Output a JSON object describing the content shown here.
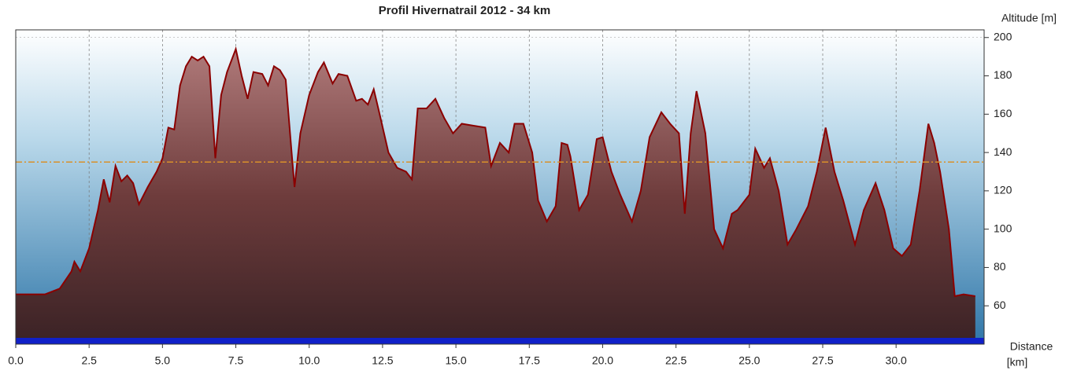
{
  "chart_data": {
    "type": "area",
    "title": "Profil Hivernatrail 2012 - 34 km",
    "y_label": "Altitude  [m]",
    "x_label": [
      "Distance",
      "[km]"
    ],
    "x": [
      0,
      0.5,
      1.0,
      1.5,
      1.9,
      2.0,
      2.2,
      2.5,
      2.8,
      3.0,
      3.2,
      3.4,
      3.6,
      3.8,
      4.0,
      4.2,
      4.5,
      4.8,
      5.0,
      5.2,
      5.4,
      5.6,
      5.8,
      6.0,
      6.2,
      6.4,
      6.6,
      6.8,
      7.0,
      7.2,
      7.5,
      7.7,
      7.9,
      8.1,
      8.4,
      8.6,
      8.8,
      9.0,
      9.2,
      9.4,
      9.5,
      9.7,
      10.0,
      10.3,
      10.5,
      10.8,
      11.0,
      11.3,
      11.6,
      11.8,
      12.0,
      12.2,
      12.4,
      12.7,
      13.0,
      13.3,
      13.5,
      13.7,
      14.0,
      14.3,
      14.6,
      14.9,
      15.2,
      15.6,
      16.0,
      16.2,
      16.5,
      16.8,
      17.0,
      17.3,
      17.6,
      17.8,
      18.1,
      18.4,
      18.6,
      18.8,
      18.9,
      19.2,
      19.5,
      19.8,
      20.0,
      20.3,
      20.6,
      21.0,
      21.3,
      21.6,
      22.0,
      22.3,
      22.6,
      22.8,
      23.0,
      23.2,
      23.5,
      23.8,
      24.1,
      24.4,
      24.6,
      24.9,
      25.0,
      25.2,
      25.5,
      25.7,
      26.0,
      26.3,
      26.6,
      27.0,
      27.3,
      27.6,
      27.9,
      28.2,
      28.6,
      28.9,
      29.3,
      29.6,
      29.9,
      30.2,
      30.5,
      30.8,
      31.1,
      31.3,
      31.5,
      31.8,
      32.0,
      32.3,
      32.7
    ],
    "series": [
      {
        "name": "Altitude",
        "color": "#8b0000",
        "values": [
          66,
          66,
          66,
          69,
          78,
          83,
          78,
          90,
          110,
          126,
          114,
          133,
          125,
          128,
          124,
          113,
          122,
          130,
          137,
          153,
          152,
          175,
          185,
          190,
          188,
          190,
          185,
          137,
          170,
          182,
          194,
          180,
          168,
          182,
          181,
          175,
          185,
          183,
          178,
          140,
          122,
          150,
          170,
          182,
          187,
          176,
          181,
          180,
          167,
          168,
          165,
          173,
          160,
          140,
          132,
          130,
          126,
          163,
          163,
          168,
          158,
          150,
          155,
          154,
          153,
          133,
          145,
          140,
          155,
          155,
          140,
          115,
          104,
          112,
          145,
          144,
          138,
          110,
          118,
          147,
          148,
          130,
          118,
          104,
          120,
          148,
          161,
          155,
          150,
          108,
          150,
          172,
          150,
          100,
          90,
          108,
          110,
          116,
          118,
          142,
          132,
          137,
          120,
          92,
          100,
          112,
          130,
          153,
          130,
          115,
          92,
          110,
          124,
          110,
          90,
          86,
          92,
          120,
          155,
          145,
          130,
          100,
          65,
          66,
          65
        ]
      }
    ],
    "reference_line": {
      "value": 135,
      "color": "#d9902a"
    },
    "xlim": [
      0,
      33
    ],
    "ylim": [
      40,
      204
    ],
    "xticks": [
      {
        "value": 0,
        "label": "0.0"
      },
      {
        "value": 2.5,
        "label": "2.5"
      },
      {
        "value": 5,
        "label": "5.0"
      },
      {
        "value": 7.5,
        "label": "7.5"
      },
      {
        "value": 10,
        "label": "10.0"
      },
      {
        "value": 12.5,
        "label": "12.5"
      },
      {
        "value": 15,
        "label": "15.0"
      },
      {
        "value": 17.5,
        "label": "17.5"
      },
      {
        "value": 20,
        "label": "20.0"
      },
      {
        "value": 22.5,
        "label": "22.5"
      },
      {
        "value": 25,
        "label": "25.0"
      },
      {
        "value": 27.5,
        "label": "27.5"
      },
      {
        "value": 30,
        "label": "30.0"
      }
    ],
    "yticks": [
      60,
      80,
      100,
      120,
      140,
      160,
      180,
      200
    ],
    "grid": true
  }
}
